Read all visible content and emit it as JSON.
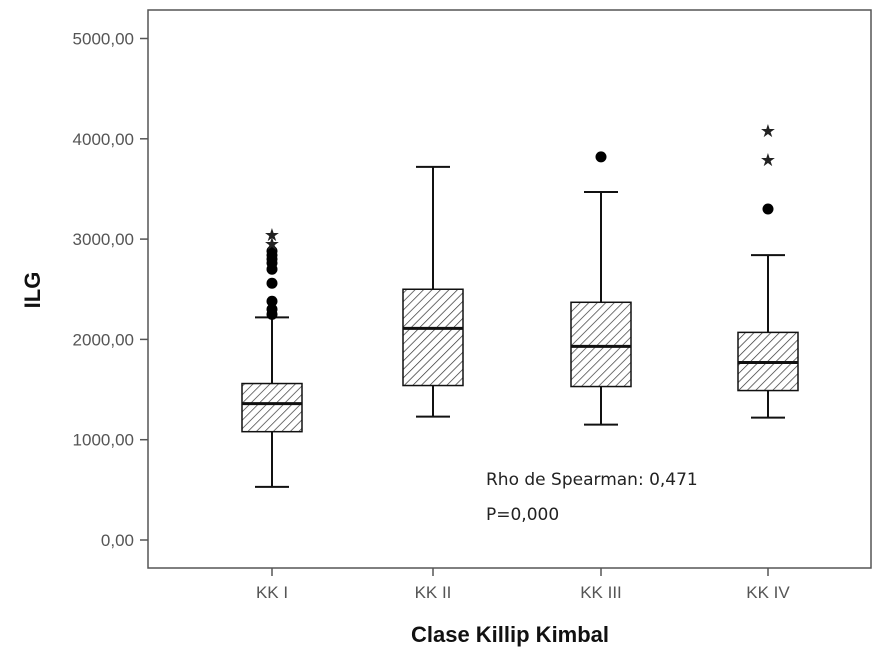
{
  "chart_data": {
    "type": "boxplot",
    "xlabel": "Clase Killip Kimbal",
    "ylabel": "ILG",
    "ylim": [
      -300,
      5300
    ],
    "yticks": [
      "0,00",
      "1000,00",
      "2000,00",
      "3000,00",
      "4000,00",
      "5000,00"
    ],
    "ytick_values": [
      0,
      1000,
      2000,
      3000,
      4000,
      5000
    ],
    "categories": [
      "KK I",
      "KK II",
      "KK III",
      "KK IV"
    ],
    "boxes": [
      {
        "category": "KK I",
        "whisker_low": 530,
        "q1": 1080,
        "median": 1360,
        "q3": 1560,
        "whisker_high": 2220,
        "outliers": [
          2250,
          2300,
          2380,
          2560,
          2700,
          2760,
          2800,
          2840,
          2880
        ],
        "extremes": [
          2960,
          3050
        ]
      },
      {
        "category": "KK II",
        "whisker_low": 1230,
        "q1": 1540,
        "median": 2110,
        "q3": 2500,
        "whisker_high": 3720,
        "outliers": [],
        "extremes": []
      },
      {
        "category": "KK III",
        "whisker_low": 1150,
        "q1": 1530,
        "median": 1930,
        "q3": 2370,
        "whisker_high": 3470,
        "outliers": [
          3820
        ],
        "extremes": []
      },
      {
        "category": "KK IV",
        "whisker_low": 1220,
        "q1": 1490,
        "median": 1770,
        "q3": 2070,
        "whisker_high": 2840,
        "outliers": [
          3300
        ],
        "extremes": [
          3800,
          4090
        ]
      }
    ],
    "annotations": [
      "Rho de Spearman: 0,471",
      "P=0,000"
    ],
    "grid": false,
    "box_fill": "hatched",
    "colors": {
      "stroke": "#111111",
      "hatch": "#333333",
      "tick_text": "#555555"
    }
  }
}
